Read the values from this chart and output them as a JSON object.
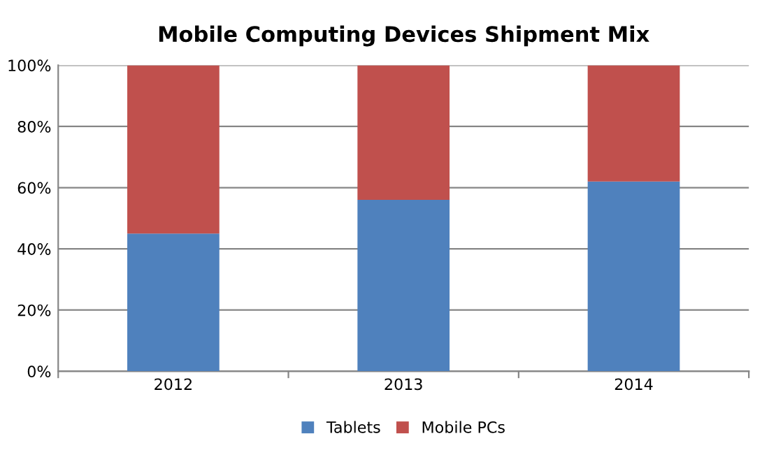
{
  "chart_data": {
    "type": "bar",
    "title": "Mobile Computing Devices Shipment Mix",
    "stacked": true,
    "categories": [
      "2012",
      "2013",
      "2014"
    ],
    "series": [
      {
        "name": "Tablets",
        "color": "#4f81bd",
        "values": [
          45,
          56,
          62
        ]
      },
      {
        "name": "Mobile PCs",
        "color": "#c0504d",
        "values": [
          55,
          44,
          38
        ]
      }
    ],
    "ylim": [
      0,
      100
    ],
    "yticks": [
      {
        "value": 0,
        "label": "0%"
      },
      {
        "value": 20,
        "label": "20%"
      },
      {
        "value": 40,
        "label": "40%"
      },
      {
        "value": 60,
        "label": "60%"
      },
      {
        "value": 80,
        "label": "80%"
      },
      {
        "value": 100,
        "label": "100%"
      }
    ],
    "grid": "y",
    "legend": "bottom"
  }
}
